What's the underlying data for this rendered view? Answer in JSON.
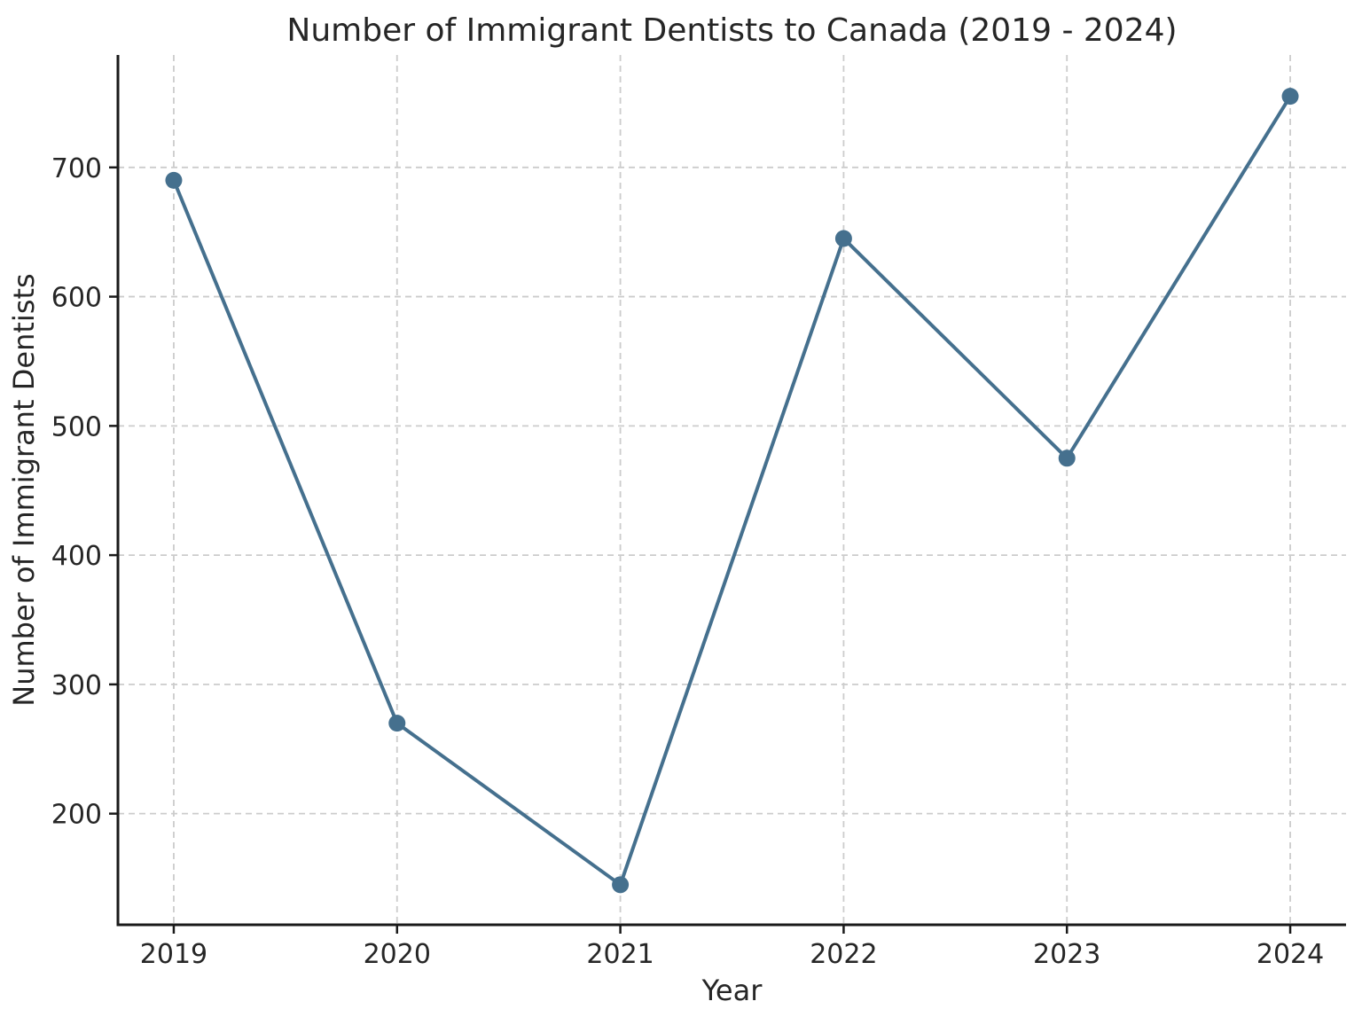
{
  "chart_data": {
    "type": "line",
    "title": "Number of Immigrant Dentists to Canada (2019 - 2024)",
    "xlabel": "Year",
    "ylabel": "Number of Immigrant Dentists",
    "x": [
      2019,
      2020,
      2021,
      2022,
      2023,
      2024
    ],
    "series": [
      {
        "name": "Immigrant Dentists",
        "values": [
          690,
          270,
          145,
          645,
          475,
          755
        ]
      }
    ],
    "xtick_labels": [
      "2019",
      "2020",
      "2021",
      "2022",
      "2023",
      "2024"
    ],
    "yticks": [
      200,
      300,
      400,
      500,
      600,
      700
    ],
    "xlim": [
      2018.75,
      2024.25
    ],
    "ylim": [
      114,
      787
    ],
    "grid": true,
    "grid_style": "dashed",
    "legend": false,
    "colors": {
      "line": "#45708E",
      "marker": "#45708E",
      "grid": "#CCCCCC",
      "axis": "#1A1A1A",
      "text": "#262626",
      "background": "#FFFFFF"
    }
  }
}
